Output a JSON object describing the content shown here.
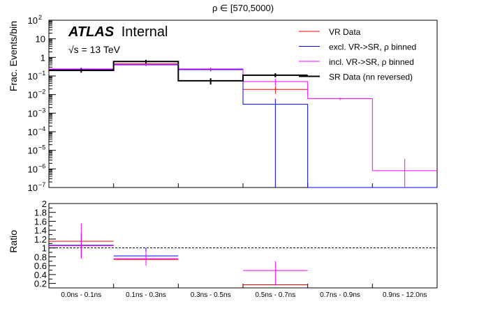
{
  "chart_data": [
    {
      "type": "step",
      "panel": "main",
      "title": "ρ ∈ [570,5000)",
      "ylabel": "Frac. Events/bin",
      "yscale": "log",
      "ylim": [
        1e-07,
        100
      ],
      "y_ticks": [
        {
          "v": 1e-07,
          "label": "10",
          "exp": "−7"
        },
        {
          "v": 1e-06,
          "label": "10",
          "exp": "−6"
        },
        {
          "v": 1e-05,
          "label": "10",
          "exp": "−5"
        },
        {
          "v": 0.0001,
          "label": "10",
          "exp": "−4"
        },
        {
          "v": 0.001,
          "label": "10",
          "exp": "−3"
        },
        {
          "v": 0.01,
          "label": "10",
          "exp": "−2"
        },
        {
          "v": 0.1,
          "label": "10",
          "exp": "−1"
        },
        {
          "v": 1,
          "label": "1",
          "exp": ""
        },
        {
          "v": 10,
          "label": "10",
          "exp": ""
        },
        {
          "v": 100,
          "label": "10",
          "exp": "2"
        }
      ],
      "categories": [
        "0.0ns - 0.1ns",
        "0.1ns - 0.3ns",
        "0.3ns - 0.5ns",
        "0.5ns - 0.7ns",
        "0.7ns - 0.9ns",
        "0.9ns - 12.0ns"
      ],
      "atlas_label": {
        "bold": "ATLAS",
        "normal": "Internal"
      },
      "energy_label": "√s = 13 TeV",
      "legend_position": "top-right",
      "series": [
        {
          "name": "VR Data",
          "color": "#ff0000",
          "width": 1,
          "values": [
            0.22,
            0.45,
            0.22,
            0.019,
            null,
            null
          ],
          "err_lo": [
            0.17,
            0.38,
            0.18,
            0.011,
            null,
            null
          ],
          "err_hi": [
            0.27,
            0.53,
            0.27,
            0.028,
            null,
            null
          ]
        },
        {
          "name": "excl. VR->SR, ρ binned",
          "color": "#0000ff",
          "width": 1,
          "values": [
            0.22,
            0.4,
            0.22,
            0.003,
            1e-07,
            1e-07
          ],
          "err_lo": [
            0.18,
            0.34,
            0.19,
            1e-07,
            null,
            null
          ],
          "err_hi": [
            0.27,
            0.47,
            0.26,
            0.006,
            null,
            null
          ]
        },
        {
          "name": "incl. VR->SR, ρ binned",
          "color": "#ff00ff",
          "width": 1,
          "values": [
            0.24,
            0.42,
            0.24,
            0.05,
            0.006,
            8e-07
          ],
          "err_lo": [
            0.19,
            0.36,
            0.2,
            0.03,
            0.005,
            1e-07
          ],
          "err_hi": [
            0.29,
            0.49,
            0.29,
            0.07,
            0.007,
            3.5e-06
          ]
        },
        {
          "name": "SR Data (nn reversed)",
          "color": "#000000",
          "width": 2,
          "values": [
            0.2,
            0.6,
            0.055,
            0.11,
            null,
            null
          ],
          "err_lo": [
            0.15,
            0.48,
            0.035,
            0.085,
            null,
            null
          ],
          "err_hi": [
            0.26,
            0.74,
            0.075,
            0.14,
            null,
            null
          ]
        }
      ]
    },
    {
      "type": "ratio",
      "panel": "ratio",
      "ylabel": "Ratio",
      "ylim": [
        0.1,
        2.0
      ],
      "y_ticks": [
        0.2,
        0.4,
        0.6,
        0.8,
        1,
        1.2,
        1.4,
        1.6,
        1.8,
        2
      ],
      "y_tick_labels": [
        "0.2",
        "0.4",
        "0.6",
        "0.8",
        "1",
        "1.2",
        "1.4",
        "1.6",
        "1.8",
        "2"
      ],
      "reference_line": 1.0,
      "categories": [
        "0.0ns - 0.1ns",
        "0.1ns - 0.3ns",
        "0.3ns - 0.5ns",
        "0.5ns - 0.7ns",
        "0.7ns - 0.9ns",
        "0.9ns - 12.0ns"
      ],
      "series": [
        {
          "name": "VR Data",
          "color": "#ff0000",
          "values": [
            1.15,
            0.74,
            null,
            0.17,
            null,
            null
          ],
          "err_lo": [
            null,
            null,
            null,
            null,
            null,
            null
          ],
          "err_hi": [
            null,
            null,
            null,
            null,
            null,
            null
          ]
        },
        {
          "name": "excl. VR->SR, ρ binned",
          "color": "#0000ff",
          "values": [
            1.06,
            0.82,
            null,
            null,
            null,
            null
          ],
          "err_lo": [
            0.78,
            0.62,
            null,
            null,
            null,
            null
          ],
          "err_hi": [
            1.33,
            1.0,
            null,
            null,
            null,
            null
          ]
        },
        {
          "name": "incl. VR->SR, ρ binned",
          "color": "#ff00ff",
          "values": [
            1.05,
            0.76,
            null,
            0.49,
            null,
            null
          ],
          "err_lo": [
            0.76,
            0.6,
            null,
            0.15,
            null,
            null
          ],
          "err_hi": [
            1.55,
            0.92,
            null,
            0.7,
            null,
            null
          ]
        }
      ]
    }
  ]
}
